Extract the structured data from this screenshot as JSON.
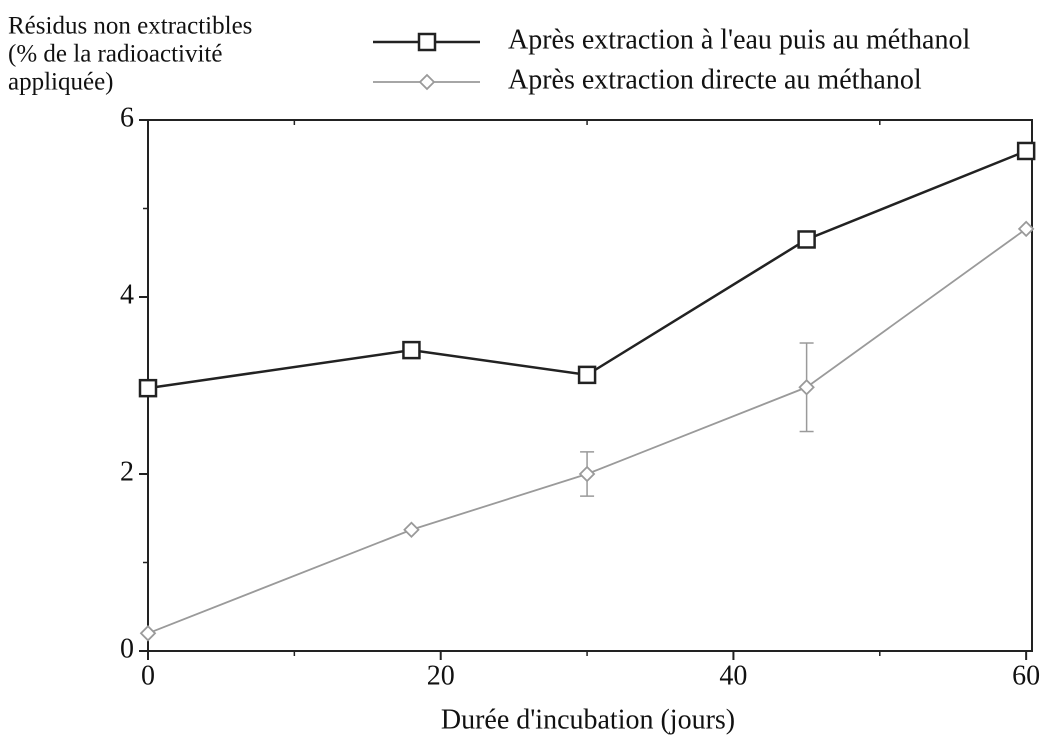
{
  "chart_data": {
    "type": "line",
    "ylabel": [
      "Résidus non extractibles",
      "(% de la radioactivité",
      "appliquée)"
    ],
    "xlabel": "Durée d'incubation (jours)",
    "x": [
      0,
      18,
      30,
      45,
      60
    ],
    "series": [
      {
        "name": "Après extraction à l'eau puis au méthanol",
        "color": "#222222",
        "marker": "square",
        "values": [
          2.97,
          3.4,
          3.12,
          4.65,
          5.65
        ]
      },
      {
        "name": "Après extraction directe au méthanol",
        "color": "#9a9a9a",
        "marker": "diamond",
        "values": [
          0.2,
          1.37,
          2.0,
          2.98,
          4.77
        ],
        "errors": [
          null,
          null,
          0.25,
          0.5,
          null
        ]
      }
    ],
    "xlim": [
      0,
      60.4
    ],
    "ylim": [
      0,
      6
    ],
    "xticks": [
      0,
      20,
      40,
      60
    ],
    "yticks": [
      0,
      2,
      4,
      6
    ],
    "xminorticks": [
      10,
      30,
      50
    ],
    "yminorticks": [
      1,
      3,
      5
    ],
    "legend": "top"
  }
}
